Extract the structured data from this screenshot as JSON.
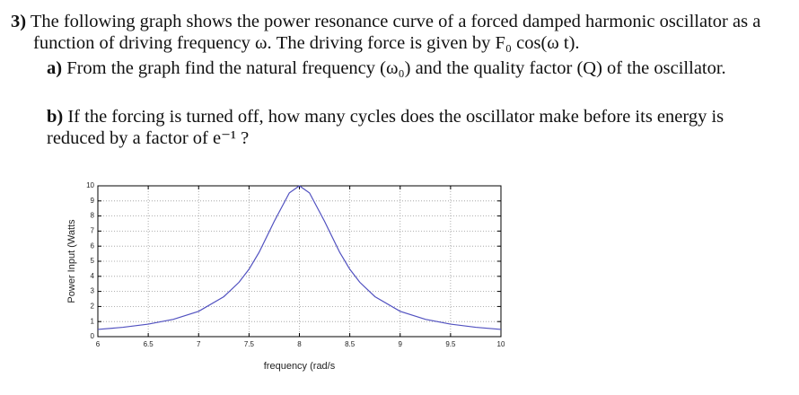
{
  "question": {
    "number": "3)",
    "intro": "The following graph shows the power resonance curve of a forced damped harmonic oscillator as a function of driving frequency ω. The driving force is given by  F₀ cos(ω t).",
    "parts": [
      {
        "label": "a)",
        "text": "From the graph find the natural frequency (ω₀) and the quality factor (Q) of the oscillator."
      },
      {
        "label": "b)",
        "text": "If the forcing is turned off, how many cycles does the oscillator make before its energy is reduced by a factor of  e⁻¹ ?"
      }
    ]
  },
  "chart_data": {
    "type": "line",
    "xlabel": "frequency (rad/s",
    "ylabel": "Power Input (Watts",
    "x": [
      6,
      6.25,
      6.5,
      6.75,
      7,
      7.25,
      7.4,
      7.5,
      7.6,
      7.75,
      7.9,
      8,
      8.1,
      8.25,
      8.4,
      8.5,
      8.6,
      8.75,
      9,
      9.25,
      9.5,
      9.75,
      10
    ],
    "series": [
      {
        "name": "power",
        "color": "#5151c0",
        "values": [
          0.48,
          0.62,
          0.83,
          1.15,
          1.68,
          2.65,
          3.6,
          4.47,
          5.59,
          7.64,
          9.53,
          10,
          9.53,
          7.64,
          5.59,
          4.47,
          3.6,
          2.65,
          1.68,
          1.15,
          0.83,
          0.62,
          0.48
        ]
      }
    ],
    "xlim": [
      6,
      10
    ],
    "xticks": [
      6,
      6.5,
      7,
      7.5,
      8,
      8.5,
      9,
      9.5,
      10
    ],
    "ylim": [
      0,
      10
    ],
    "yticks": [
      0,
      1,
      2,
      3,
      4,
      5,
      6,
      7,
      8,
      9,
      10
    ],
    "grid": true
  }
}
